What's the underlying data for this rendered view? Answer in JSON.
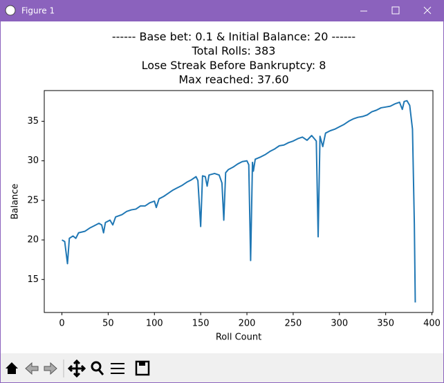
{
  "window": {
    "title": "Figure 1"
  },
  "chart_data": {
    "type": "line",
    "title": [
      "------ Base bet: 0.1 & Initial Balance: 20 ------",
      "Total Rolls: 383",
      "Lose Streak Before Bankruptcy: 8",
      "Max reached: 37.60"
    ],
    "x_label": "Roll Count",
    "y_label": "Balance",
    "xlim": [
      -19.1,
      401.1
    ],
    "ylim": [
      10.83,
      38.88
    ],
    "xticks": [
      0,
      50,
      100,
      150,
      200,
      250,
      300,
      350,
      400
    ],
    "yticks": [
      15,
      20,
      25,
      30,
      35
    ],
    "grid": false,
    "series": [
      {
        "color": "#1f77b4",
        "x": [
          0,
          3,
          6,
          8,
          12,
          15,
          18,
          25,
          30,
          35,
          40,
          43,
          45,
          47,
          52,
          55,
          58,
          65,
          70,
          75,
          80,
          85,
          90,
          95,
          100,
          102,
          105,
          110,
          115,
          120,
          125,
          130,
          135,
          140,
          145,
          147,
          150,
          152,
          155,
          157,
          159,
          165,
          170,
          173,
          175,
          177,
          180,
          185,
          190,
          195,
          200,
          202,
          204,
          206,
          207,
          209,
          215,
          220,
          225,
          230,
          235,
          240,
          245,
          250,
          255,
          260,
          265,
          270,
          275,
          277,
          279,
          282,
          285,
          290,
          295,
          300,
          305,
          310,
          315,
          320,
          325,
          330,
          335,
          340,
          345,
          350,
          355,
          360,
          365,
          368,
          370,
          373,
          376,
          379,
          381,
          382
        ],
        "values": [
          20,
          19.8,
          17.0,
          20.2,
          20.5,
          20.2,
          20.9,
          21.1,
          21.5,
          21.8,
          22.1,
          21.9,
          20.9,
          22.2,
          22.5,
          21.9,
          22.9,
          23.2,
          23.6,
          23.8,
          23.9,
          24.3,
          24.3,
          24.7,
          24.9,
          24.1,
          25.2,
          25.5,
          25.9,
          26.3,
          26.6,
          26.9,
          27.3,
          27.6,
          28.0,
          27.5,
          21.7,
          28.1,
          28.0,
          26.8,
          28.2,
          28.4,
          28.2,
          27.2,
          22.5,
          28.5,
          28.9,
          29.2,
          29.6,
          29.9,
          30.0,
          29.5,
          17.4,
          29.8,
          28.7,
          30.2,
          30.5,
          30.8,
          31.2,
          31.5,
          31.9,
          32.0,
          32.3,
          32.5,
          32.8,
          33.0,
          32.6,
          33.2,
          32.5,
          20.4,
          33.1,
          31.8,
          33.5,
          33.8,
          34.0,
          34.3,
          34.6,
          35.0,
          35.3,
          35.5,
          35.6,
          35.8,
          36.2,
          36.4,
          36.7,
          36.8,
          36.9,
          37.2,
          37.4,
          36.5,
          37.5,
          37.6,
          37.0,
          34.0,
          22.0,
          12.1
        ]
      }
    ]
  }
}
